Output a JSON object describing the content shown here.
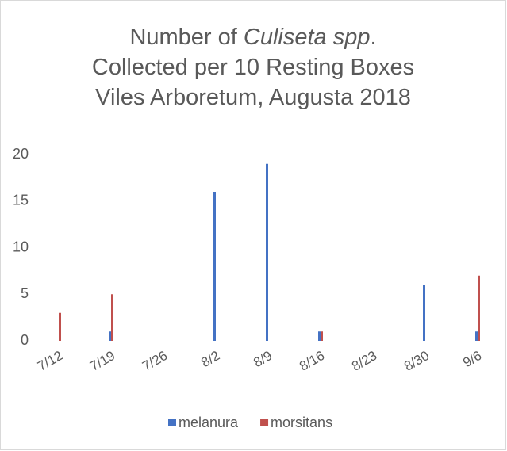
{
  "chart_data": {
    "type": "bar",
    "title": [
      [
        {
          "text": "Number of "
        },
        {
          "text": "Culiseta spp",
          "italic": true
        },
        {
          "text": "."
        }
      ],
      [
        {
          "text": "Collected per 10 Resting Boxes"
        }
      ],
      [
        {
          "text": "Viles Arboretum, Augusta 2018"
        }
      ]
    ],
    "categories": [
      "7/12",
      "7/19",
      "7/26",
      "8/2",
      "8/9",
      "8/16",
      "8/23",
      "8/30",
      "9/6"
    ],
    "series": [
      {
        "name": "melanura",
        "color": "#4472c4",
        "values": [
          0,
          1,
          0,
          16,
          19,
          1,
          0,
          6,
          1
        ]
      },
      {
        "name": "morsitans",
        "color": "#c0504d",
        "values": [
          3,
          5,
          0,
          0,
          0,
          1,
          0,
          0,
          7
        ]
      }
    ],
    "ylim": [
      0,
      20
    ],
    "yticks": [
      0,
      5,
      10,
      15,
      20
    ],
    "grid": false,
    "legend": "bottom"
  }
}
